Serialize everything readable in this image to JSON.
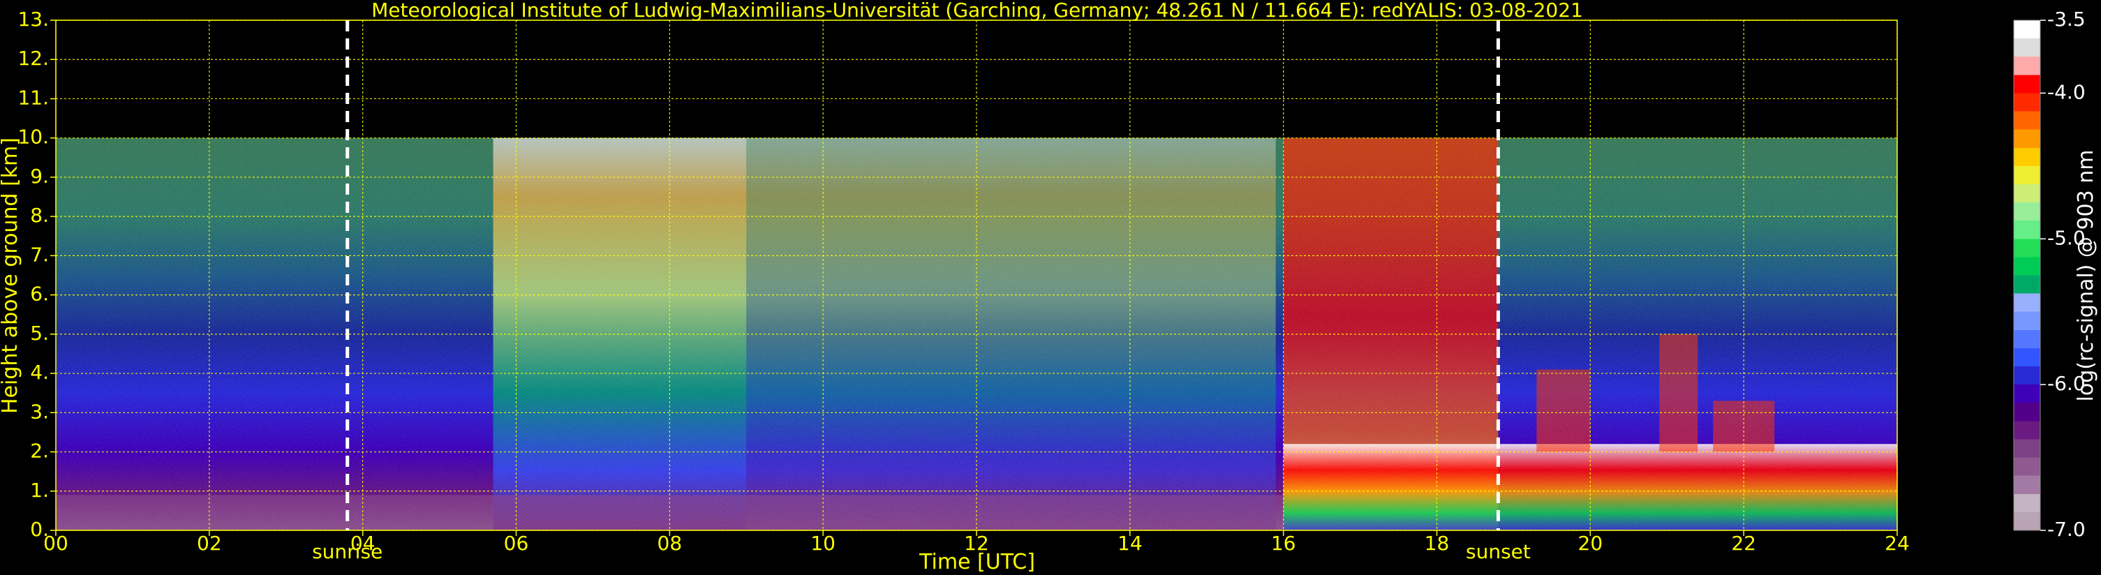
{
  "chart_data": {
    "type": "heatmap",
    "title": "Meteorological Institute of Ludwig-Maximilians-Universität (Garching, Germany; 48.261 N / 11.664 E):    redYALIS: 03-08-2021",
    "xlabel": "Time [UTC]",
    "ylabel": "Height above ground [km]",
    "xlim": [
      0,
      24
    ],
    "ylim": [
      0,
      13
    ],
    "x_ticks": [
      "00",
      "02",
      "04",
      "06",
      "08",
      "10",
      "12",
      "14",
      "16",
      "18",
      "20",
      "22",
      "24"
    ],
    "x_tick_values": [
      0,
      2,
      4,
      6,
      8,
      10,
      12,
      14,
      16,
      18,
      20,
      22,
      24
    ],
    "y_ticks": [
      "0.",
      "1.",
      "2.",
      "3.",
      "4.",
      "5.",
      "6.",
      "7.",
      "8.",
      "9.",
      "10.",
      "11.",
      "12.",
      "13."
    ],
    "y_tick_values": [
      0,
      1,
      2,
      3,
      4,
      5,
      6,
      7,
      8,
      9,
      10,
      11,
      12,
      13
    ],
    "grid": true,
    "data_top_km": 10,
    "colorbar": {
      "label": "log(rc-signal) @ 903 nm",
      "range": [
        -7.0,
        -3.5
      ],
      "ticks": [
        "-3.5",
        "-4.0",
        "-5.0",
        "-6.0",
        "-7.0"
      ],
      "tick_values": [
        -3.5,
        -4.0,
        -5.0,
        -6.0,
        -7.0
      ],
      "colors": [
        "#b8a4b4",
        "#c4b4c4",
        "#a37aa3",
        "#8f5a8f",
        "#7d3f85",
        "#6a1a80",
        "#52008a",
        "#4000b8",
        "#2a2ad6",
        "#3355ff",
        "#5577ff",
        "#7799ff",
        "#99b0ff",
        "#00aa66",
        "#00cc55",
        "#22dd55",
        "#66ee88",
        "#99ee99",
        "#ccee77",
        "#eeee33",
        "#ffcc00",
        "#ff9900",
        "#ff6600",
        "#ff2a00",
        "#ff0000",
        "#ffaaaa",
        "#dddddd",
        "#ffffff"
      ]
    },
    "events": [
      {
        "label": "sunrise",
        "x": 3.8
      },
      {
        "label": "sunset",
        "x": 18.8
      }
    ]
  }
}
